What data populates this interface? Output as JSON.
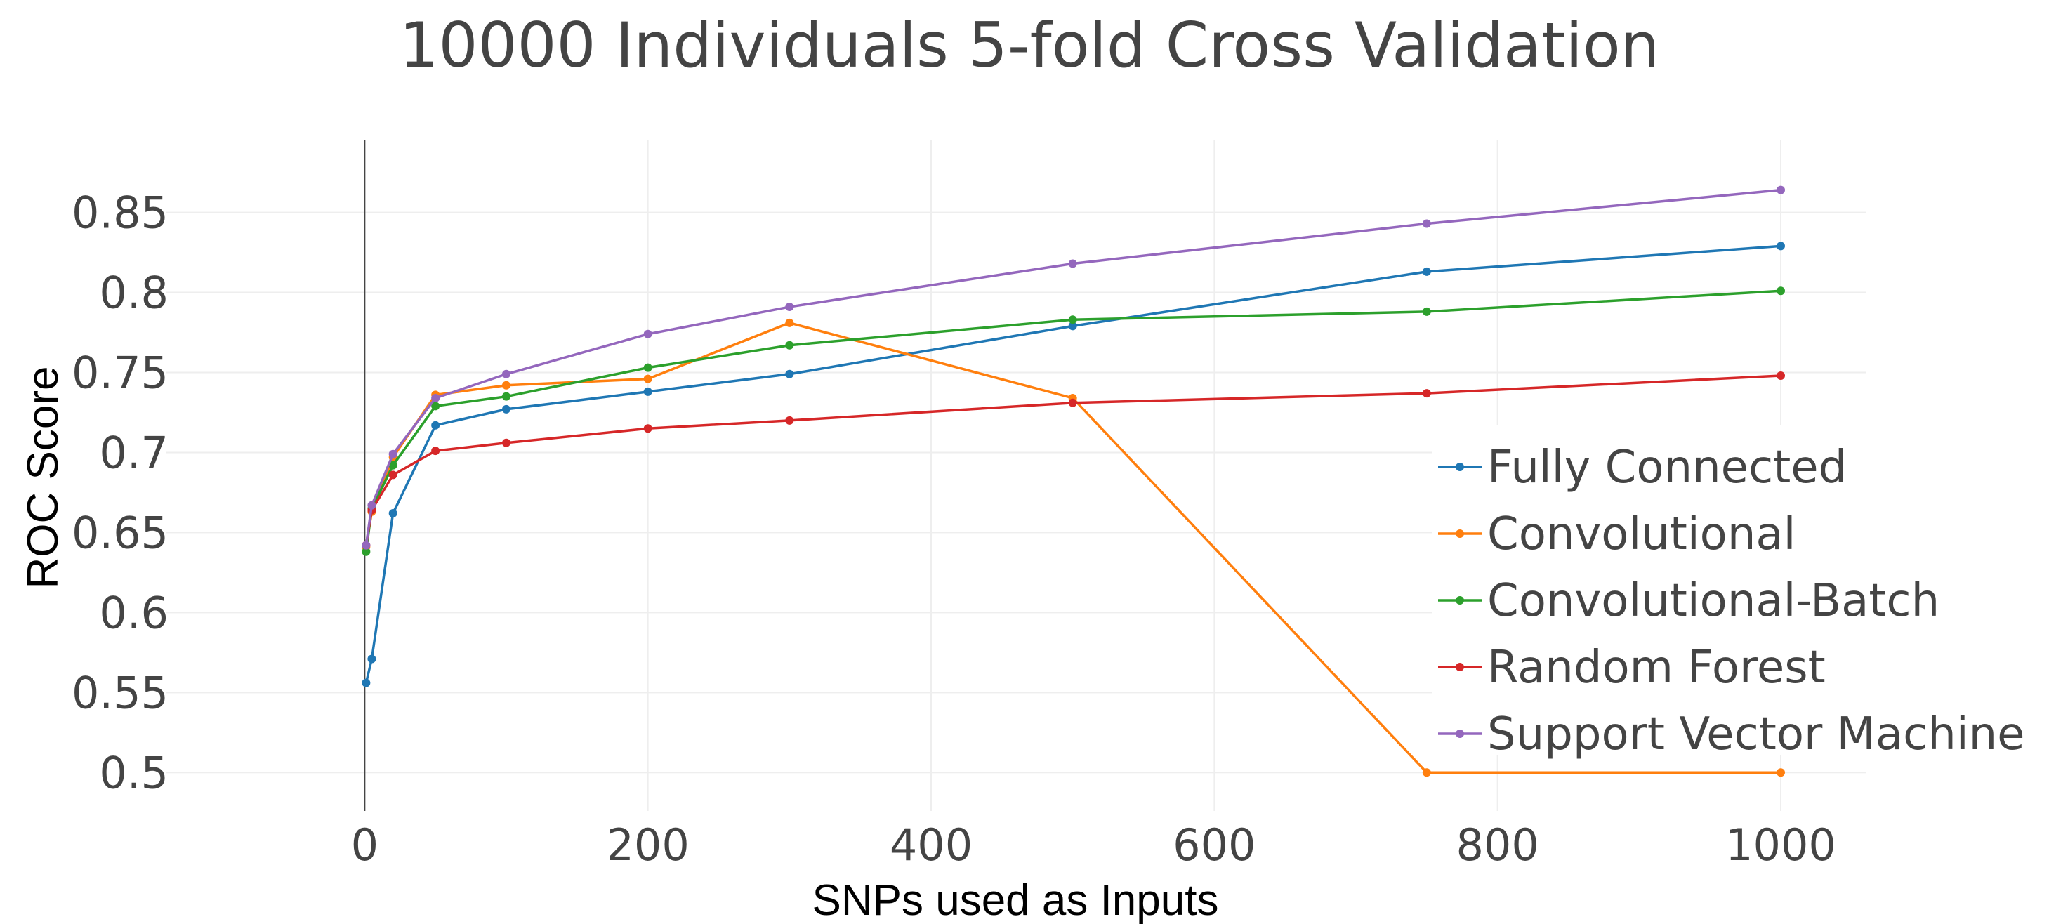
{
  "chart_data": {
    "type": "line",
    "title": "10000 Individuals 5-fold Cross Validation",
    "xlabel": "SNPs used as Inputs",
    "ylabel": "ROC Score",
    "xlim": [
      -140,
      1060
    ],
    "ylim": [
      0.476,
      0.895
    ],
    "xticks": [
      0,
      200,
      400,
      600,
      800,
      1000
    ],
    "xtick_labels": [
      "0",
      "200",
      "400",
      "600",
      "800",
      "1000"
    ],
    "yticks": [
      0.5,
      0.55,
      0.6,
      0.65,
      0.7,
      0.75,
      0.8,
      0.85
    ],
    "ytick_labels": [
      "0.5",
      "0.55",
      "0.6",
      "0.65",
      "0.7",
      "0.75",
      "0.8",
      "0.85"
    ],
    "grid": true,
    "legend_position": "right",
    "x": [
      1,
      5,
      20,
      50,
      100,
      200,
      300,
      500,
      750,
      1000
    ],
    "series": [
      {
        "name": "Fully Connected",
        "color": "#1f77b4",
        "values": [
          0.556,
          0.571,
          0.662,
          0.717,
          0.727,
          0.738,
          0.749,
          0.779,
          0.813,
          0.829
        ]
      },
      {
        "name": "Convolutional",
        "color": "#ff7f0e",
        "values": [
          0.641,
          0.663,
          0.697,
          0.736,
          0.742,
          0.746,
          0.781,
          0.734,
          0.5,
          0.5
        ]
      },
      {
        "name": "Convolutional-Batch",
        "color": "#2ca02c",
        "values": [
          0.638,
          0.665,
          0.692,
          0.729,
          0.735,
          0.753,
          0.767,
          0.783,
          0.788,
          0.801
        ]
      },
      {
        "name": "Random Forest",
        "color": "#d62728",
        "values": [
          0.642,
          0.664,
          0.686,
          0.701,
          0.706,
          0.715,
          0.72,
          0.731,
          0.737,
          0.748
        ]
      },
      {
        "name": "Support Vector Machine",
        "color": "#9467bd",
        "values": [
          0.642,
          0.667,
          0.699,
          0.734,
          0.749,
          0.774,
          0.791,
          0.818,
          0.843,
          0.864
        ]
      }
    ]
  }
}
